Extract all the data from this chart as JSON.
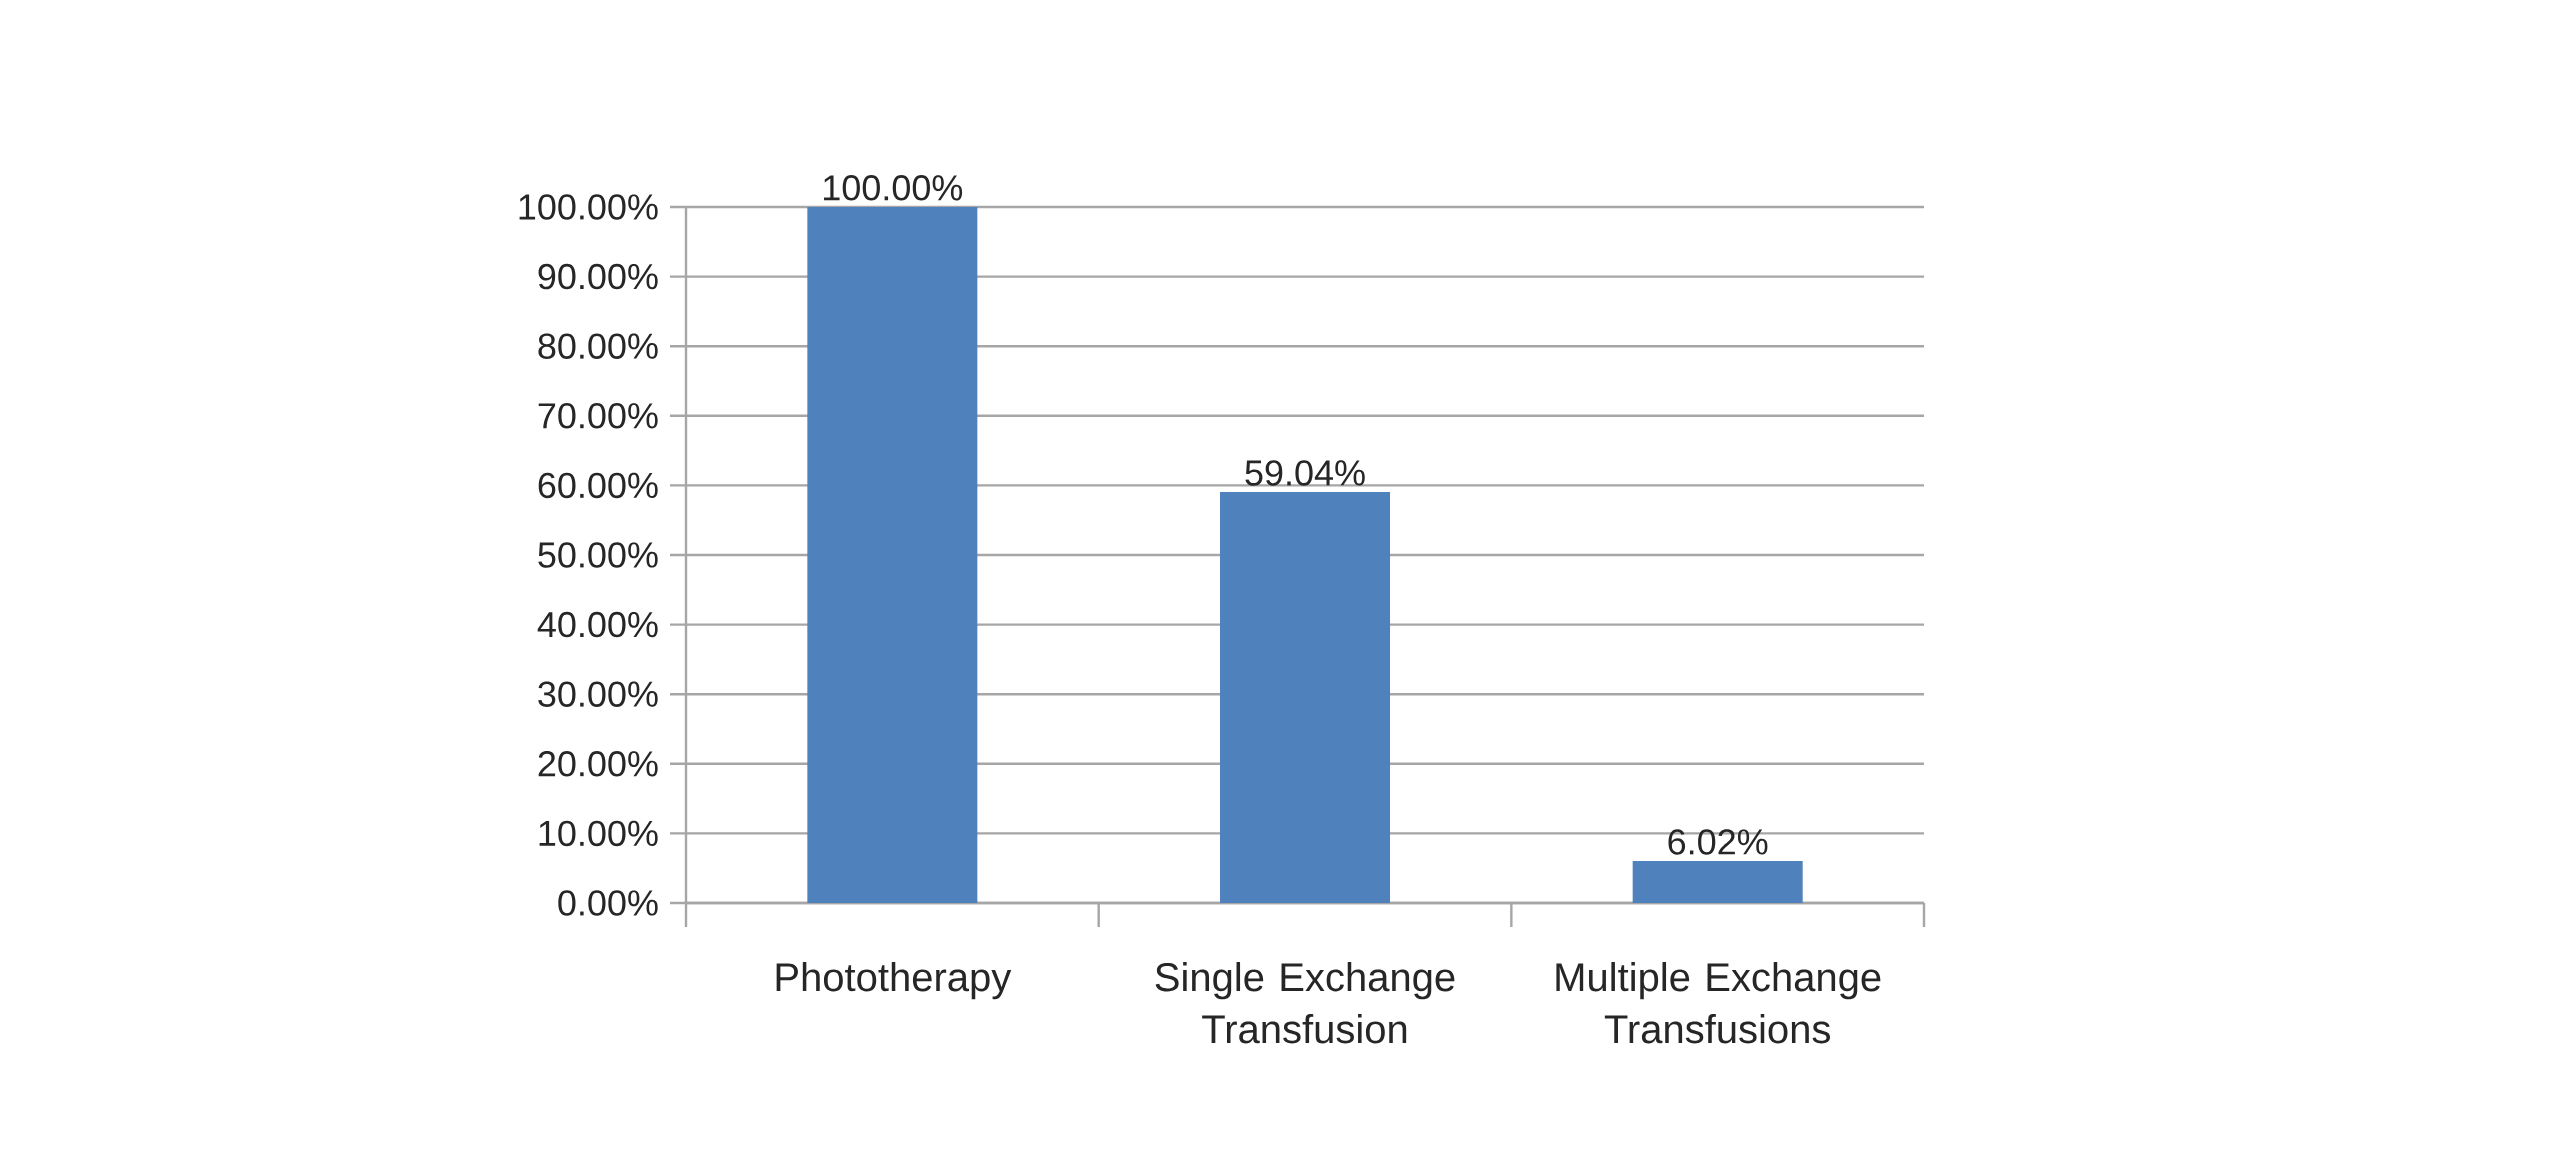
{
  "chart_data": {
    "type": "bar",
    "categories": [
      "Phototherapy",
      "Single Exchange Transfusion",
      "Multiple Exchange Transfusions"
    ],
    "values": [
      100,
      59.04,
      6.02
    ],
    "color": "#4f81bd",
    "value_labels": [
      "100.00%",
      "59.04%",
      "6.02%"
    ],
    "ylim": [
      0,
      100
    ],
    "yticks": [
      {
        "value": 0,
        "label": "0.00%"
      },
      {
        "value": 10,
        "label": "10.00%"
      },
      {
        "value": 20,
        "label": "20.00%"
      },
      {
        "value": 30,
        "label": "30.00%"
      },
      {
        "value": 40,
        "label": "40.00%"
      },
      {
        "value": 50,
        "label": "50.00%"
      },
      {
        "value": 60,
        "label": "60.00%"
      },
      {
        "value": 70,
        "label": "70.00%"
      },
      {
        "value": 80,
        "label": "80.00%"
      },
      {
        "value": 90,
        "label": "90.00%"
      },
      {
        "value": 100,
        "label": "100.00%"
      }
    ],
    "grid": "y"
  }
}
